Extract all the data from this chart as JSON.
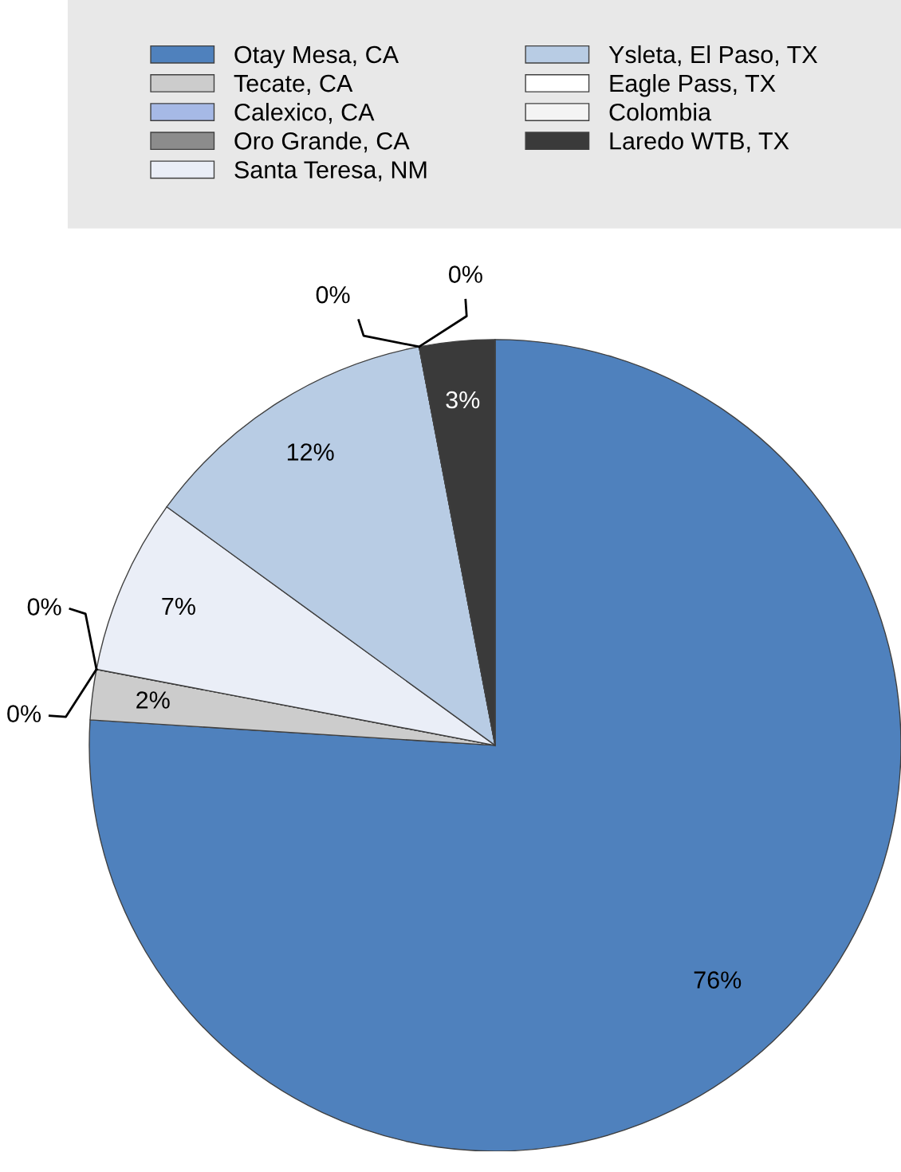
{
  "chart_data": {
    "type": "pie",
    "categories": [
      "Otay Mesa, CA",
      "Tecate, CA",
      "Calexico, CA",
      "Oro Grande, CA",
      "Santa Teresa, NM",
      "Ysleta, El Paso, TX",
      "Eagle Pass, TX",
      "Colombia",
      "Laredo WTB, TX"
    ],
    "values": [
      76,
      2,
      0,
      0,
      7,
      12,
      0,
      0,
      3
    ],
    "colors": [
      "#4f81bd",
      "#cccccc",
      "#a6b9e6",
      "#8c8c8c",
      "#eaeef7",
      "#b8cce4",
      "#ffffff",
      "#f4f4f4",
      "#3a3a3a"
    ],
    "value_labels": [
      "76%",
      "2%",
      "0%",
      "0%",
      "7%",
      "12%",
      "0%",
      "0%",
      "3%"
    ],
    "legend": "top"
  }
}
